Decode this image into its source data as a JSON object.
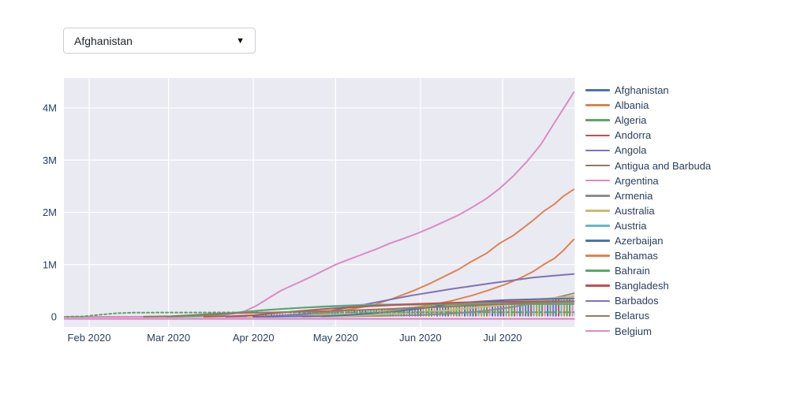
{
  "dropdown": {
    "value": "Afghanistan",
    "arrow": "▼"
  },
  "palette": [
    "#4c72b0",
    "#dd8452",
    "#55a868",
    "#c44e52",
    "#8172b3",
    "#937860",
    "#da8bc3",
    "#8c8c8c",
    "#ccb974",
    "#64b5cd"
  ],
  "legend": {
    "items": [
      {
        "label": "Afghanistan",
        "color": "#4c72b0"
      },
      {
        "label": "Albania",
        "color": "#dd8452"
      },
      {
        "label": "Algeria",
        "color": "#55a868"
      },
      {
        "label": "Andorra",
        "color": "#c44e52"
      },
      {
        "label": "Angola",
        "color": "#8172b3"
      },
      {
        "label": "Antigua and Barbuda",
        "color": "#937860"
      },
      {
        "label": "Argentina",
        "color": "#da8bc3"
      },
      {
        "label": "Armenia",
        "color": "#8c8c8c"
      },
      {
        "label": "Australia",
        "color": "#ccb974"
      },
      {
        "label": "Austria",
        "color": "#64b5cd"
      },
      {
        "label": "Azerbaijan",
        "color": "#4c72b0"
      },
      {
        "label": "Bahamas",
        "color": "#dd8452"
      },
      {
        "label": "Bahrain",
        "color": "#55a868"
      },
      {
        "label": "Bangladesh",
        "color": "#c44e52"
      },
      {
        "label": "Barbados",
        "color": "#8172b3"
      },
      {
        "label": "Belarus",
        "color": "#937860"
      },
      {
        "label": "Belgium",
        "color": "#da8bc3"
      }
    ]
  },
  "chart_data": {
    "type": "line",
    "title": "",
    "xlabel": "",
    "ylabel": "",
    "plot_bg": "#eaeaf2",
    "grid": true,
    "legend_position": "right",
    "x_axis": {
      "unit": "days",
      "range_days": [
        1,
        187
      ],
      "ticks": [
        {
          "label": "Feb 2020",
          "day": 10
        },
        {
          "label": "Mar 2020",
          "day": 39
        },
        {
          "label": "Apr 2020",
          "day": 70
        },
        {
          "label": "May 2020",
          "day": 100
        },
        {
          "label": "Jun 2020",
          "day": 131
        },
        {
          "label": "Jul 2020",
          "day": 161
        }
      ]
    },
    "y_axis": {
      "unit": "millions",
      "range": [
        -0.2,
        4.57
      ],
      "ticks": [
        {
          "label": "0",
          "value": 0
        },
        {
          "label": "1M",
          "value": 1
        },
        {
          "label": "2M",
          "value": 2
        },
        {
          "label": "3M",
          "value": 3
        },
        {
          "label": "4M",
          "value": 4
        }
      ]
    },
    "series": [
      {
        "name": "pink-top",
        "color": "#da8bc3",
        "dash": null,
        "points": [
          [
            0,
            0
          ],
          [
            35,
            0.002
          ],
          [
            50,
            0.006
          ],
          [
            58,
            0.025
          ],
          [
            63,
            0.06
          ],
          [
            67,
            0.11
          ],
          [
            71,
            0.21
          ],
          [
            75,
            0.34
          ],
          [
            80,
            0.5
          ],
          [
            85,
            0.62
          ],
          [
            90,
            0.74
          ],
          [
            95,
            0.87
          ],
          [
            100,
            1.0
          ],
          [
            105,
            1.1
          ],
          [
            110,
            1.2
          ],
          [
            115,
            1.3
          ],
          [
            120,
            1.41
          ],
          [
            125,
            1.5
          ],
          [
            130,
            1.6
          ],
          [
            135,
            1.71
          ],
          [
            140,
            1.83
          ],
          [
            145,
            1.95
          ],
          [
            150,
            2.1
          ],
          [
            155,
            2.26
          ],
          [
            160,
            2.46
          ],
          [
            165,
            2.7
          ],
          [
            170,
            2.98
          ],
          [
            175,
            3.3
          ],
          [
            180,
            3.72
          ],
          [
            184,
            4.05
          ],
          [
            187,
            4.3
          ]
        ]
      },
      {
        "name": "orange-upper",
        "color": "#dd8452",
        "dash": null,
        "points": [
          [
            70,
            0.003
          ],
          [
            85,
            0.012
          ],
          [
            92,
            0.03
          ],
          [
            100,
            0.09
          ],
          [
            107,
            0.16
          ],
          [
            114,
            0.23
          ],
          [
            121,
            0.35
          ],
          [
            129,
            0.51
          ],
          [
            135,
            0.65
          ],
          [
            140,
            0.78
          ],
          [
            145,
            0.91
          ],
          [
            149,
            1.04
          ],
          [
            155,
            1.21
          ],
          [
            160,
            1.41
          ],
          [
            165,
            1.56
          ],
          [
            168,
            1.68
          ],
          [
            172,
            1.84
          ],
          [
            176,
            2.02
          ],
          [
            180,
            2.16
          ],
          [
            183,
            2.3
          ],
          [
            187,
            2.44
          ]
        ]
      },
      {
        "name": "orange-lower",
        "color": "#dd8452",
        "dash": null,
        "points": [
          [
            75,
            0.002
          ],
          [
            95,
            0.02
          ],
          [
            105,
            0.045
          ],
          [
            112,
            0.07
          ],
          [
            117,
            0.1
          ],
          [
            125,
            0.145
          ],
          [
            132,
            0.2
          ],
          [
            142,
            0.3
          ],
          [
            150,
            0.41
          ],
          [
            156,
            0.51
          ],
          [
            162,
            0.62
          ],
          [
            167,
            0.73
          ],
          [
            172,
            0.86
          ],
          [
            176,
            1.0
          ],
          [
            180,
            1.12
          ],
          [
            183,
            1.26
          ],
          [
            187,
            1.48
          ]
        ]
      },
      {
        "name": "purple",
        "color": "#8172b3",
        "dash": null,
        "points": [
          [
            60,
            0.002
          ],
          [
            72,
            0.008
          ],
          [
            80,
            0.02
          ],
          [
            88,
            0.05
          ],
          [
            96,
            0.09
          ],
          [
            103,
            0.16
          ],
          [
            110,
            0.23
          ],
          [
            116,
            0.29
          ],
          [
            122,
            0.35
          ],
          [
            128,
            0.41
          ],
          [
            135,
            0.47
          ],
          [
            142,
            0.53
          ],
          [
            150,
            0.59
          ],
          [
            158,
            0.65
          ],
          [
            165,
            0.7
          ],
          [
            172,
            0.75
          ],
          [
            180,
            0.79
          ],
          [
            187,
            0.82
          ]
        ]
      },
      {
        "name": "gray",
        "color": "#8c8c8c",
        "dash": null,
        "points": [
          [
            95,
            0.003
          ],
          [
            115,
            0.015
          ],
          [
            130,
            0.03
          ],
          [
            140,
            0.055
          ],
          [
            147,
            0.08
          ],
          [
            152,
            0.1
          ],
          [
            157,
            0.13
          ],
          [
            161,
            0.16
          ],
          [
            165,
            0.19
          ],
          [
            169,
            0.23
          ],
          [
            173,
            0.27
          ],
          [
            176,
            0.31
          ],
          [
            180,
            0.36
          ],
          [
            184,
            0.41
          ],
          [
            187,
            0.45
          ]
        ]
      },
      {
        "name": "yellow-a",
        "color": "#ccb974",
        "dash": null,
        "points": [
          [
            68,
            0.002
          ],
          [
            80,
            0.008
          ],
          [
            88,
            0.016
          ],
          [
            95,
            0.03
          ],
          [
            101,
            0.045
          ],
          [
            108,
            0.065
          ],
          [
            114,
            0.085
          ],
          [
            121,
            0.11
          ],
          [
            129,
            0.16
          ],
          [
            136,
            0.2
          ],
          [
            144,
            0.23
          ],
          [
            152,
            0.26
          ],
          [
            160,
            0.285
          ],
          [
            168,
            0.31
          ],
          [
            175,
            0.34
          ],
          [
            182,
            0.37
          ],
          [
            187,
            0.39
          ]
        ]
      },
      {
        "name": "yellow-b",
        "color": "#ccb974",
        "dash": null,
        "points": [
          [
            88,
            0.002
          ],
          [
            105,
            0.02
          ],
          [
            118,
            0.05
          ],
          [
            128,
            0.08
          ],
          [
            138,
            0.11
          ],
          [
            148,
            0.16
          ],
          [
            158,
            0.21
          ],
          [
            168,
            0.27
          ],
          [
            178,
            0.33
          ],
          [
            187,
            0.4
          ]
        ]
      },
      {
        "name": "blue",
        "color": "#4c72b0",
        "dash": null,
        "points": [
          [
            70,
            0.001
          ],
          [
            95,
            0.012
          ],
          [
            105,
            0.035
          ],
          [
            113,
            0.065
          ],
          [
            121,
            0.1
          ],
          [
            128,
            0.14
          ],
          [
            134,
            0.18
          ],
          [
            140,
            0.23
          ],
          [
            145,
            0.26
          ],
          [
            152,
            0.29
          ],
          [
            162,
            0.32
          ],
          [
            175,
            0.34
          ],
          [
            187,
            0.35
          ]
        ]
      },
      {
        "name": "green-early",
        "color": "#55a868",
        "dash": "3,3",
        "points": [
          [
            0,
            0.0005
          ],
          [
            8,
            0.008
          ],
          [
            14,
            0.04
          ],
          [
            20,
            0.068
          ],
          [
            26,
            0.078
          ],
          [
            40,
            0.081
          ],
          [
            80,
            0.083
          ],
          [
            130,
            0.085
          ],
          [
            187,
            0.087
          ]
        ]
      },
      {
        "name": "cyan",
        "color": "#64b5cd",
        "dash": null,
        "points": [
          [
            40,
            0.001
          ],
          [
            52,
            0.012
          ],
          [
            58,
            0.035
          ],
          [
            63,
            0.065
          ],
          [
            68,
            0.095
          ],
          [
            73,
            0.125
          ],
          [
            80,
            0.15
          ],
          [
            88,
            0.175
          ],
          [
            96,
            0.2
          ],
          [
            110,
            0.23
          ],
          [
            130,
            0.245
          ],
          [
            155,
            0.255
          ],
          [
            172,
            0.27
          ],
          [
            187,
            0.28
          ]
        ]
      },
      {
        "name": "green-b",
        "color": "#55a868",
        "dash": null,
        "points": [
          [
            38,
            0.001
          ],
          [
            48,
            0.012
          ],
          [
            55,
            0.035
          ],
          [
            60,
            0.06
          ],
          [
            66,
            0.09
          ],
          [
            72,
            0.12
          ],
          [
            80,
            0.15
          ],
          [
            90,
            0.18
          ],
          [
            100,
            0.2
          ],
          [
            115,
            0.222
          ],
          [
            135,
            0.236
          ],
          [
            160,
            0.242
          ],
          [
            187,
            0.246
          ]
        ]
      },
      {
        "name": "red",
        "color": "#c44e52",
        "dash": null,
        "points": [
          [
            52,
            0.001
          ],
          [
            62,
            0.01
          ],
          [
            70,
            0.03
          ],
          [
            78,
            0.07
          ],
          [
            86,
            0.105
          ],
          [
            95,
            0.145
          ],
          [
            105,
            0.18
          ],
          [
            115,
            0.21
          ],
          [
            130,
            0.248
          ],
          [
            150,
            0.28
          ],
          [
            170,
            0.293
          ],
          [
            187,
            0.3
          ]
        ]
      },
      {
        "name": "brown",
        "color": "#937860",
        "dash": null,
        "points": [
          [
            30,
            0.001
          ],
          [
            40,
            0.012
          ],
          [
            47,
            0.03
          ],
          [
            55,
            0.055
          ],
          [
            62,
            0.068
          ],
          [
            75,
            0.082
          ],
          [
            90,
            0.1
          ],
          [
            110,
            0.13
          ],
          [
            130,
            0.17
          ],
          [
            150,
            0.215
          ],
          [
            170,
            0.27
          ],
          [
            187,
            0.29
          ]
        ]
      }
    ],
    "dense_band": {
      "description": "many overlapping country lines between ~0.02M and ~0.38M forming a striped band",
      "top_edge": [
        [
          66,
          0.02
        ],
        [
          78,
          0.05
        ],
        [
          100,
          0.09
        ],
        [
          120,
          0.16
        ],
        [
          135,
          0.22
        ],
        [
          152,
          0.26
        ],
        [
          166,
          0.3
        ],
        [
          177,
          0.34
        ],
        [
          187,
          0.37
        ]
      ],
      "bottom_value": 0.005,
      "stripe_colors": [
        "#8172b3",
        "#4c72b0",
        "#c44e52",
        "#64b5cd",
        "#dd8452",
        "#55a868",
        "#937860",
        "#da8bc3",
        "#4c72b0",
        "#8c8c8c"
      ]
    },
    "zero_overlay": {
      "color": "#e08cc8",
      "value": 0
    }
  }
}
